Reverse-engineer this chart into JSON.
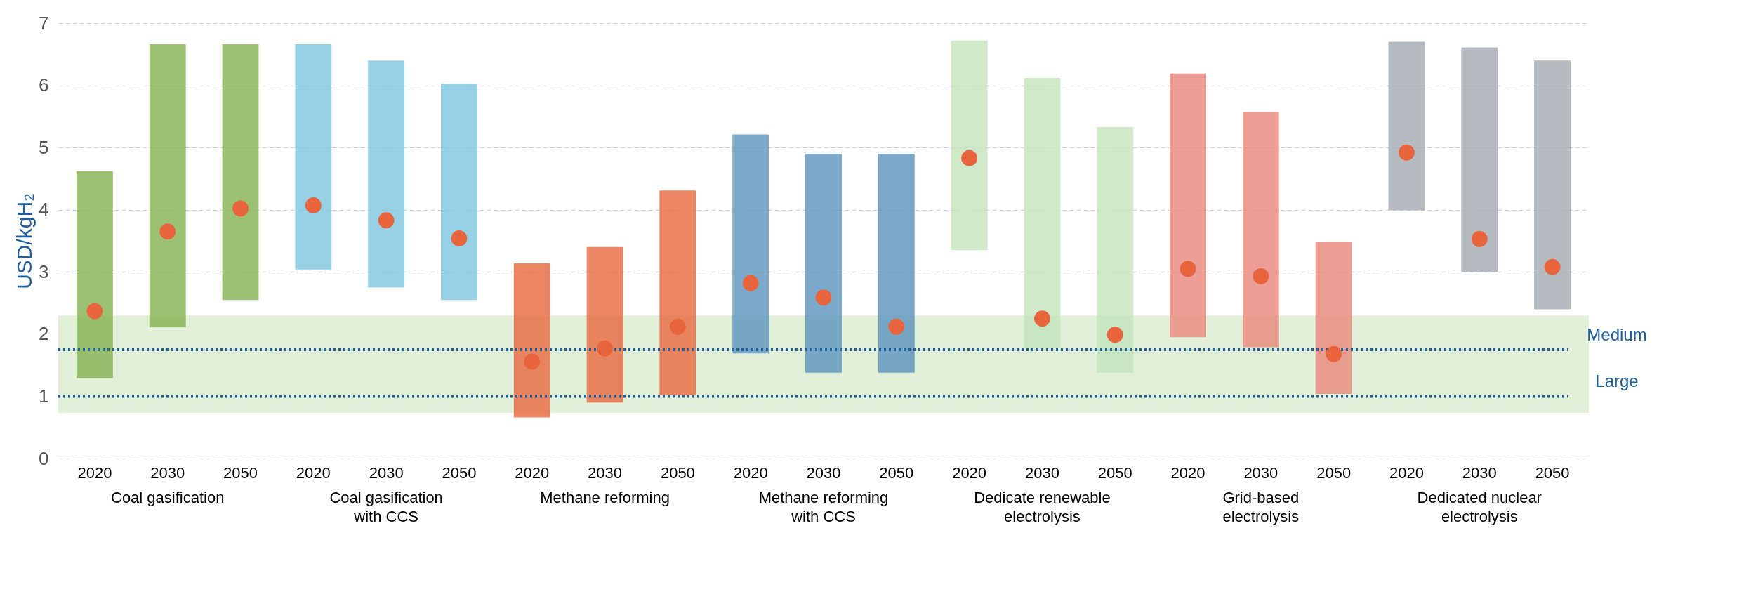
{
  "chart_data": {
    "type": "bar",
    "ylabel": "USD/kgH₂",
    "ylim": [
      0,
      7
    ],
    "yticks": [
      0,
      1,
      2,
      3,
      4,
      5,
      6,
      7
    ],
    "grid": "y",
    "categories": [
      "2020",
      "2030",
      "2050",
      "2020",
      "2030",
      "2050",
      "2020",
      "2030",
      "2050",
      "2020",
      "2030",
      "2050",
      "2020",
      "2030",
      "2050",
      "2020",
      "2030",
      "2050",
      "2020",
      "2030",
      "2050"
    ],
    "series": [
      {
        "base": [
          1.29,
          2.11,
          2.55,
          3.04,
          2.75,
          2.55,
          0.66,
          0.9,
          1.02,
          1.69,
          1.38,
          1.38,
          3.35,
          1.77,
          1.38,
          1.95,
          1.79,
          1.04,
          3.99,
          3.0,
          2.4
        ],
        "values": [
          3.33,
          4.55,
          4.11,
          3.62,
          3.65,
          3.47,
          2.48,
          2.5,
          3.29,
          3.52,
          3.52,
          3.52,
          3.37,
          4.35,
          3.95,
          4.24,
          3.78,
          2.45,
          2.71,
          3.61,
          4.0
        ],
        "colors": [
          "#84b250",
          "#84b250",
          "#84b250",
          "#7ec4e0",
          "#7ec4e0",
          "#7ec4e0",
          "#e8683e",
          "#e8683e",
          "#e8683e",
          "#5b93bd",
          "#5b93bd",
          "#5b93bd",
          "#c3e3bb",
          "#c3e3bb",
          "#c3e3bb",
          "#e8877a",
          "#e8877a",
          "#e8877a",
          "#a4a9b2",
          "#a4a9b2",
          "#a4a9b2"
        ]
      },
      {
        "type": "scatter",
        "color": "#e8643c",
        "marker": "circle",
        "values": [
          2.37,
          3.65,
          4.02,
          4.07,
          3.83,
          3.54,
          1.56,
          1.77,
          2.12,
          2.82,
          2.59,
          2.12,
          4.83,
          2.25,
          1.99,
          3.05,
          2.93,
          1.68,
          4.92,
          3.53,
          3.08
        ]
      }
    ],
    "bands": [
      {
        "axis": "y",
        "from": 0.73,
        "to": 2.3,
        "color": "#e2efd9"
      }
    ],
    "ref_lines": [
      {
        "axis": "y",
        "value": 1.75,
        "label": "Medium",
        "color": "#1f5f9e",
        "line_style": "dotted"
      },
      {
        "axis": "y",
        "value": 1.0,
        "label": "Large",
        "color": "#1f5f9e",
        "line_style": "dotted"
      }
    ],
    "annotations": [
      "Coal gasification",
      "Coal gasification\nwith CCS",
      "Methane reforming",
      "Methane reforming\nwith CCS",
      "Dedicate renewable\nelectrolysis",
      "Grid-based\nelectrolysis",
      "Dedicated nuclear\nelectrolysis"
    ]
  }
}
